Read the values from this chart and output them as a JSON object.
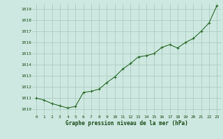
{
  "x": [
    0,
    1,
    2,
    3,
    4,
    5,
    6,
    7,
    8,
    9,
    10,
    11,
    12,
    13,
    14,
    15,
    16,
    17,
    18,
    19,
    20,
    21,
    22,
    23
  ],
  "y": [
    1011.0,
    1010.8,
    1010.5,
    1010.3,
    1010.1,
    1010.25,
    1011.5,
    1011.6,
    1011.8,
    1012.4,
    1012.9,
    1013.6,
    1014.1,
    1014.7,
    1014.8,
    1015.0,
    1015.55,
    1015.8,
    1015.5,
    1016.0,
    1016.35,
    1017.0,
    1017.75,
    1019.3
  ],
  "line_color": "#2d6a2d",
  "marker": "+",
  "marker_size": 3,
  "marker_color": "#2d6a2d",
  "bg_color": "#cce8e0",
  "grid_color": "#a8c8bc",
  "xlabel": "Graphe pression niveau de la mer (hPa)",
  "xlabel_color": "#1a4a1a",
  "tick_color": "#1a4a1a",
  "ylim": [
    1009.5,
    1019.5
  ],
  "yticks": [
    1010,
    1011,
    1012,
    1013,
    1014,
    1015,
    1016,
    1017,
    1018,
    1019
  ],
  "xticks": [
    0,
    1,
    2,
    3,
    4,
    5,
    6,
    7,
    8,
    9,
    10,
    11,
    12,
    13,
    14,
    15,
    16,
    17,
    18,
    19,
    20,
    21,
    22,
    23
  ],
  "xlim": [
    -0.5,
    23.5
  ]
}
